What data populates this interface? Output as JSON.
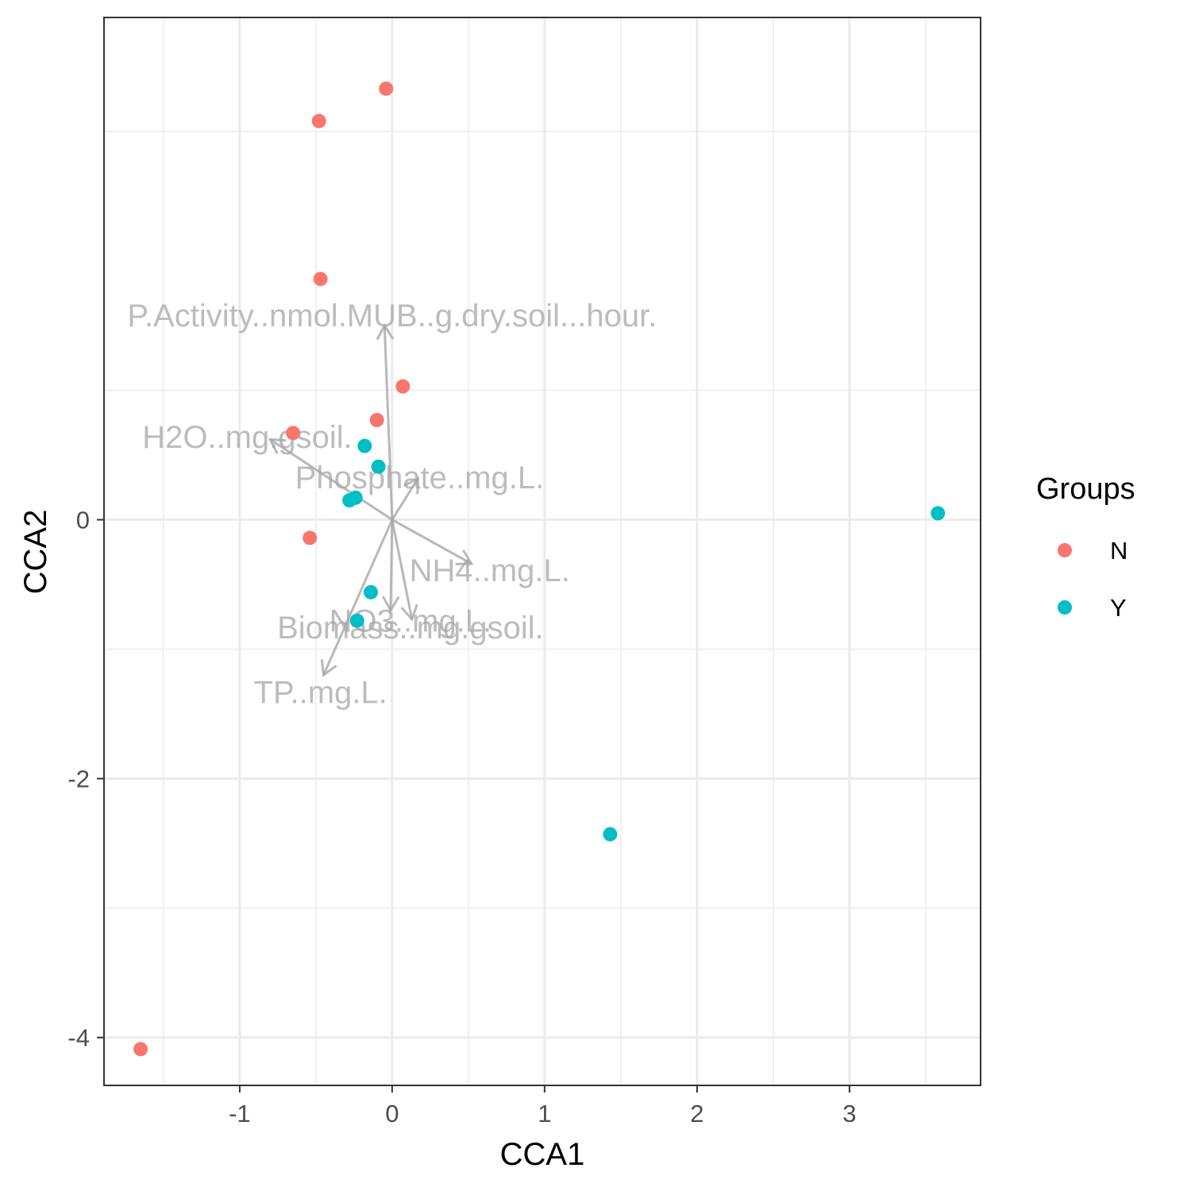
{
  "chart_data": {
    "type": "scatter",
    "title": "",
    "xlabel": "CCA1",
    "ylabel": "CCA2",
    "xlim": [
      -1.89,
      3.86
    ],
    "ylim": [
      -4.37,
      3.88
    ],
    "x_ticks": [
      -1,
      0,
      1,
      2,
      3
    ],
    "y_ticks": [
      -4,
      -2,
      0
    ],
    "x_tick_labels": [
      "-1",
      "0",
      "1",
      "2",
      "3"
    ],
    "y_tick_labels": [
      "-4",
      "-2",
      "0"
    ],
    "grid": true,
    "legend": {
      "title": "Groups",
      "placement": "right"
    },
    "series": [
      {
        "name": "N",
        "color": "#F8766D",
        "points": [
          {
            "x": -0.04,
            "y": 3.33
          },
          {
            "x": -0.48,
            "y": 3.08
          },
          {
            "x": -0.47,
            "y": 1.86
          },
          {
            "x": 0.07,
            "y": 1.03
          },
          {
            "x": -0.1,
            "y": 0.77
          },
          {
            "x": -0.65,
            "y": 0.67
          },
          {
            "x": -0.54,
            "y": -0.14
          },
          {
            "x": -1.65,
            "y": -4.09
          }
        ]
      },
      {
        "name": "Y",
        "color": "#00BFC4",
        "points": [
          {
            "x": -0.18,
            "y": 0.57
          },
          {
            "x": -0.09,
            "y": 0.41
          },
          {
            "x": -0.24,
            "y": 0.17
          },
          {
            "x": -0.28,
            "y": 0.15
          },
          {
            "x": -0.14,
            "y": -0.56
          },
          {
            "x": -0.23,
            "y": -0.78
          },
          {
            "x": 1.43,
            "y": -2.43
          },
          {
            "x": 3.58,
            "y": 0.05
          }
        ]
      }
    ],
    "arrows": [
      {
        "label": "P.Activity..nmol.MUB..g.dry.soil...hour.",
        "x": -0.05,
        "y": 1.5
      },
      {
        "label": "H2O..mg.gsoil.",
        "x": -0.8,
        "y": 0.62
      },
      {
        "label": "Phosphate..mg.L.",
        "x": 0.17,
        "y": 0.32
      },
      {
        "label": "NH4..mg.L.",
        "x": 0.52,
        "y": -0.34
      },
      {
        "label": "NO3..mg.L.",
        "x": 0.13,
        "y": -0.77
      },
      {
        "label": "Biomass..mg.gsoil.",
        "x": -0.01,
        "y": -0.7
      },
      {
        "label": "TP..mg.L.",
        "x": -0.45,
        "y": -1.2
      }
    ],
    "arrow_label_positions": [
      {
        "x": 0.0,
        "y": 1.58
      },
      {
        "x": -0.95,
        "y": 0.64
      },
      {
        "x": 0.18,
        "y": 0.33
      },
      {
        "x": 0.64,
        "y": -0.39
      },
      {
        "x": 0.12,
        "y": -0.78
      },
      {
        "x": 0.12,
        "y": -0.83
      },
      {
        "x": -0.47,
        "y": -1.33
      }
    ]
  }
}
